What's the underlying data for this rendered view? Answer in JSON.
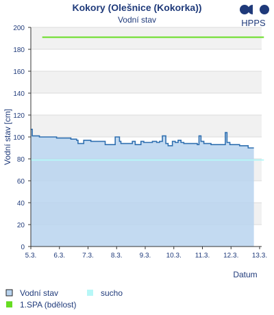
{
  "chart_data": {
    "type": "line",
    "title": "Kokory (Olešnice (Kokorka))",
    "subtitle": "Vodní stav",
    "xlabel": "Datum",
    "ylabel": "Vodní stav [cm]",
    "ylim": [
      0,
      200
    ],
    "yticks": [
      0,
      20,
      40,
      60,
      80,
      100,
      120,
      140,
      160,
      180,
      200
    ],
    "xlim": [
      0,
      8.15
    ],
    "xtick_labels": [
      "5.3.",
      "6.3.",
      "7.3.",
      "8.3.",
      "9.3.",
      "10.3.",
      "11.3.",
      "12.3.",
      "13.3."
    ],
    "grid": true,
    "series": [
      {
        "name": "Vodní stav",
        "color": "#2f6fb0",
        "fill": "#b8d3ee",
        "x": [
          0,
          0.05,
          0.12,
          0.3,
          0.6,
          0.9,
          1.1,
          1.4,
          1.6,
          1.65,
          1.72,
          1.85,
          1.95,
          2.05,
          2.1,
          2.3,
          2.5,
          2.6,
          2.75,
          2.85,
          2.95,
          3.05,
          3.1,
          3.15,
          3.22,
          3.4,
          3.55,
          3.65,
          3.72,
          3.85,
          3.95,
          4.1,
          4.25,
          4.4,
          4.5,
          4.6,
          4.66,
          4.72,
          4.8,
          4.95,
          5.05,
          5.15,
          5.25,
          5.35,
          5.4,
          5.55,
          5.65,
          5.82,
          5.88,
          5.95,
          6.05,
          6.15,
          6.3,
          6.45,
          6.55,
          6.65,
          6.7,
          6.8,
          6.86,
          6.96,
          7.1,
          7.3,
          7.5,
          7.6,
          7.8
        ],
        "values": [
          107,
          101,
          101,
          100,
          100,
          99,
          99,
          98,
          97,
          94,
          94,
          97,
          97,
          97,
          96,
          96,
          96,
          93,
          93,
          93,
          100,
          100,
          96,
          94,
          94,
          94,
          96,
          93,
          93,
          96,
          95,
          95,
          96,
          95,
          96,
          101,
          101,
          94,
          92,
          96,
          95,
          97,
          95,
          94,
          94,
          94,
          94,
          93,
          101,
          96,
          94,
          94,
          93,
          93,
          93,
          93,
          93,
          104,
          95,
          93,
          93,
          92,
          92,
          90,
          90
        ]
      },
      {
        "name": "sucho",
        "color": "#b7f7f7",
        "values": [
          79
        ]
      },
      {
        "name": "1.SPA (bdělost)",
        "color": "#66dd22",
        "values": [
          191
        ]
      }
    ],
    "legend_position": "bottom-left"
  },
  "logo": {
    "text": "HPPS",
    "color": "#1f3a7a"
  }
}
